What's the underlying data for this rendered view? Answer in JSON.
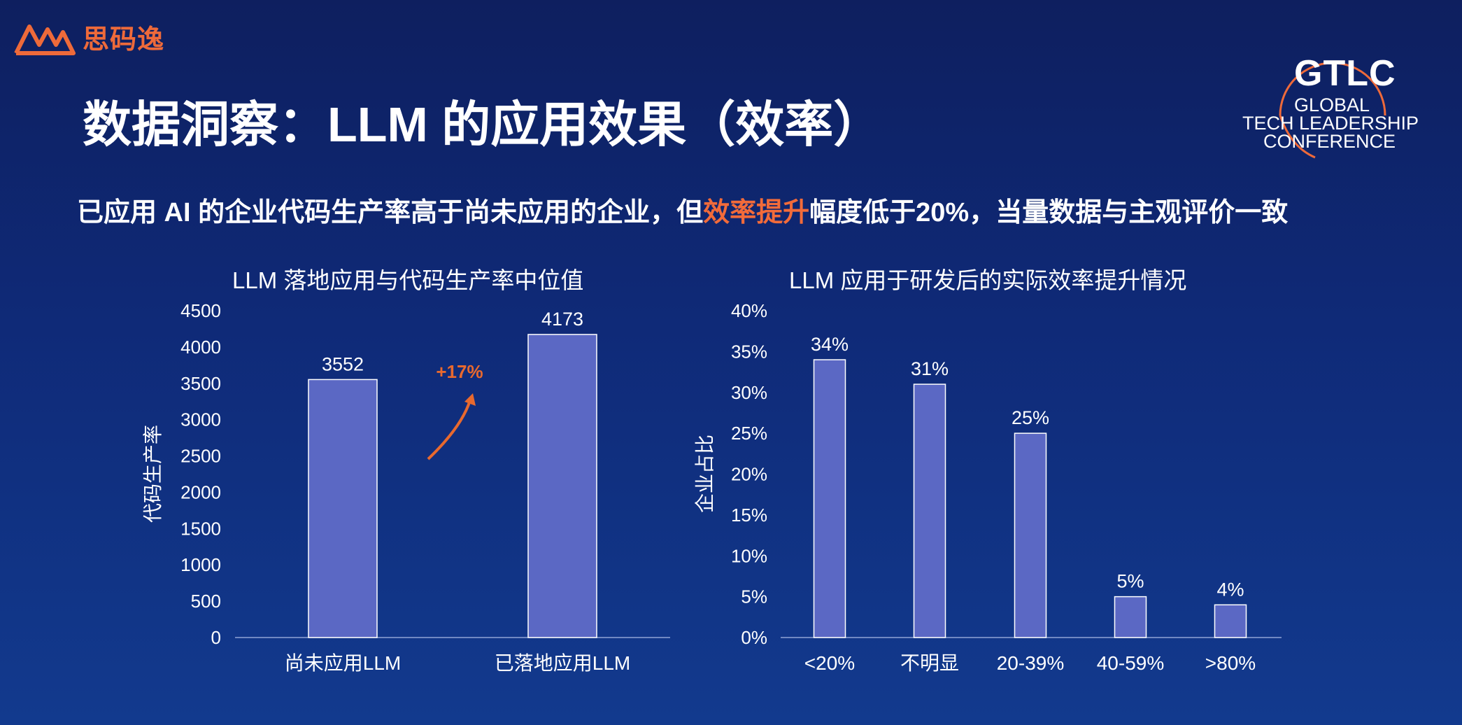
{
  "brand": {
    "logo_text": "思码逸",
    "accent": "#ee6a3a"
  },
  "conference": {
    "abbr": "GTLC",
    "line1": "GLOBAL",
    "line2": "TECH LEADERSHIP",
    "line3": "CONFERENCE"
  },
  "title": "数据洞察：LLM 的应用效果（效率）",
  "subtitle": {
    "before": "已应用 AI 的企业代码生产率高于尚未应用的企业，但",
    "highlight": "效率提升",
    "after": "幅度低于20%，当量数据与主观评价一致",
    "highlight_color": "#f26b3a"
  },
  "chart_data": [
    {
      "type": "bar",
      "title": "LLM 落地应用与代码生产率中位值",
      "ylabel": "代码生产率",
      "categories": [
        "尚未应用LLM",
        "已落地应用LLM"
      ],
      "values": [
        3552,
        4173
      ],
      "data_labels": [
        "3552",
        "4173"
      ],
      "ylim": [
        0,
        4500
      ],
      "yticks": [
        "0",
        "500",
        "1000",
        "1500",
        "2000",
        "2500",
        "3000",
        "3500",
        "4000",
        "4500"
      ],
      "annotation": "+17%",
      "annotation_color": "#e8692e",
      "bar_color": "#5b68c4",
      "grid": false
    },
    {
      "type": "bar",
      "title": "LLM 应用于研发后的实际效率提升情况",
      "ylabel": "企业占比",
      "categories": [
        "<20%",
        "不明显",
        "20-39%",
        "40-59%",
        ">80%"
      ],
      "values": [
        34,
        31,
        25,
        5,
        4
      ],
      "data_labels": [
        "34%",
        "31%",
        "25%",
        "5%",
        "4%"
      ],
      "ylim": [
        0,
        40
      ],
      "yticks": [
        "0%",
        "5%",
        "10%",
        "15%",
        "20%",
        "25%",
        "30%",
        "35%",
        "40%"
      ],
      "bar_color": "#5b68c4",
      "grid": false
    }
  ]
}
